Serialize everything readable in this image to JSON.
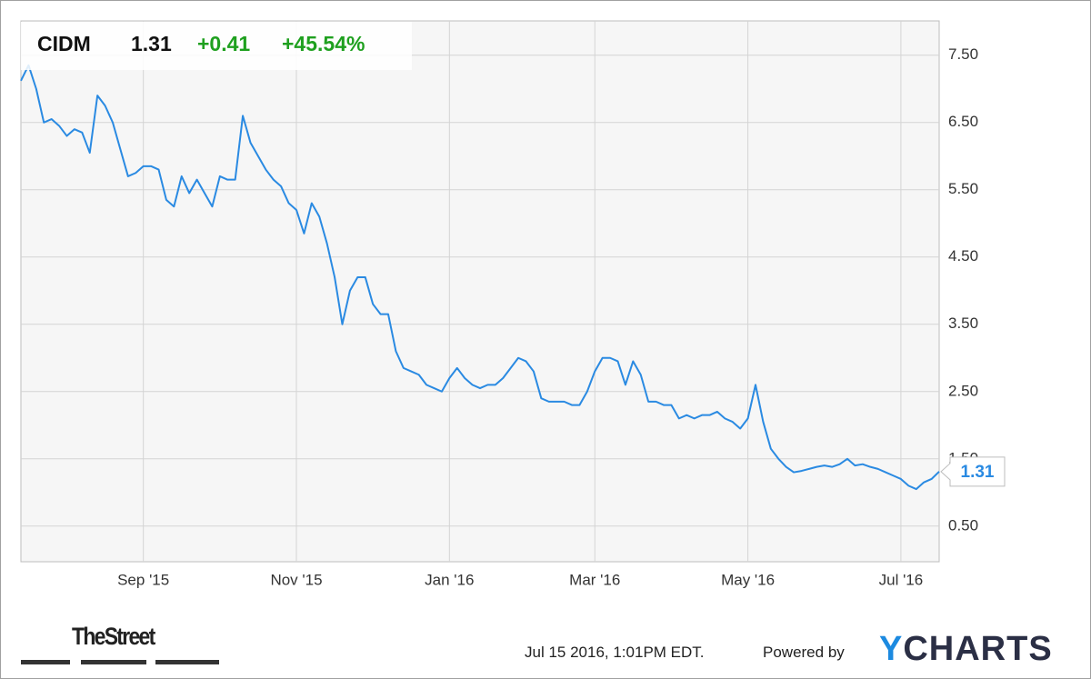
{
  "chart_data": {
    "type": "line",
    "ticker": "CIDM",
    "change": "+0.41",
    "change_percent": "+45.54%",
    "categories": [
      null,
      null,
      null,
      null,
      null,
      null,
      null,
      null,
      null,
      null,
      null,
      null,
      null,
      null,
      null,
      null,
      "Sep '15",
      null,
      null,
      null,
      null,
      null,
      null,
      null,
      null,
      null,
      null,
      null,
      null,
      null,
      null,
      null,
      null,
      null,
      null,
      null,
      "Nov '15",
      null,
      null,
      null,
      null,
      null,
      null,
      null,
      null,
      null,
      null,
      null,
      null,
      null,
      null,
      null,
      null,
      null,
      null,
      null,
      "Jan '16",
      null,
      null,
      null,
      null,
      null,
      null,
      null,
      null,
      null,
      null,
      null,
      null,
      null,
      null,
      null,
      null,
      null,
      null,
      "Mar '16",
      null,
      null,
      null,
      null,
      null,
      null,
      null,
      null,
      null,
      null,
      null,
      null,
      null,
      null,
      null,
      null,
      null,
      null,
      null,
      "May '16",
      null,
      null,
      null,
      null,
      null,
      null,
      null,
      null,
      null,
      null,
      null,
      null,
      null,
      null,
      null,
      null,
      null,
      null,
      null,
      "Jul '16",
      null,
      null,
      null,
      null,
      null
    ],
    "series": [
      {
        "name": "CIDM",
        "color": "#2a8ae2",
        "values": [
          7.12,
          7.35,
          7.0,
          6.5,
          6.55,
          6.45,
          6.3,
          6.4,
          6.35,
          6.05,
          6.9,
          6.75,
          6.5,
          6.1,
          5.7,
          5.75,
          5.85,
          5.85,
          5.8,
          5.35,
          5.25,
          5.7,
          5.45,
          5.65,
          5.45,
          5.25,
          5.7,
          5.65,
          5.65,
          6.6,
          6.2,
          6.0,
          5.8,
          5.65,
          5.55,
          5.3,
          5.2,
          4.85,
          5.3,
          5.1,
          4.7,
          4.2,
          3.5,
          4.0,
          4.2,
          4.2,
          3.8,
          3.65,
          3.65,
          3.1,
          2.85,
          2.8,
          2.75,
          2.6,
          2.55,
          2.5,
          2.7,
          2.85,
          2.7,
          2.6,
          2.55,
          2.6,
          2.6,
          2.7,
          2.85,
          3.0,
          2.95,
          2.8,
          2.4,
          2.35,
          2.35,
          2.35,
          2.3,
          2.3,
          2.5,
          2.8,
          3.0,
          3.0,
          2.95,
          2.6,
          2.95,
          2.75,
          2.35,
          2.35,
          2.3,
          2.3,
          2.1,
          2.15,
          2.1,
          2.15,
          2.15,
          2.2,
          2.1,
          2.05,
          1.95,
          2.1,
          2.6,
          2.05,
          1.65,
          1.5,
          1.38,
          1.3,
          1.32,
          1.35,
          1.38,
          1.4,
          1.38,
          1.42,
          1.5,
          1.4,
          1.42,
          1.38,
          1.35,
          1.3,
          1.25,
          1.2,
          1.1,
          1.05,
          1.15,
          1.2,
          1.31
        ]
      }
    ],
    "ylim": [
      -0.03,
      8.01
    ],
    "yticks": [
      {
        "value": 0.5,
        "label": "0.50"
      },
      {
        "value": 1.5,
        "label": "1.50"
      },
      {
        "value": 2.5,
        "label": "2.50"
      },
      {
        "value": 3.5,
        "label": "3.50"
      },
      {
        "value": 4.5,
        "label": "4.50"
      },
      {
        "value": 5.5,
        "label": "5.50"
      },
      {
        "value": 6.5,
        "label": "6.50"
      },
      {
        "value": 7.5,
        "label": "7.50"
      }
    ],
    "grid": true,
    "timestamp": "Jul 15 2016, 1:01PM EDT.",
    "powered_by": "Powered by",
    "brand": "YCHARTS",
    "publisher": "TheStreet"
  }
}
